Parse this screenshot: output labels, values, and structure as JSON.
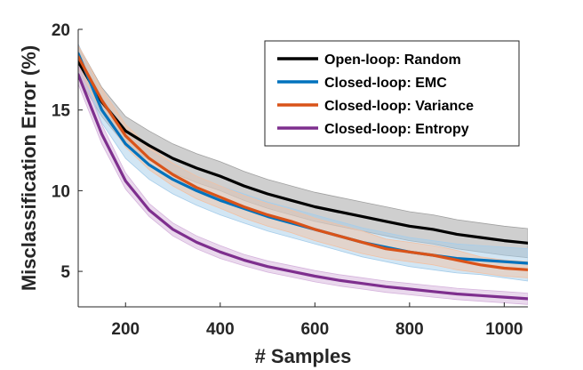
{
  "chart_data": {
    "type": "line",
    "xlabel": "# Samples",
    "ylabel": "Misclassification Error (%)",
    "xlim": [
      100,
      1050
    ],
    "ylim": [
      2.8,
      20
    ],
    "xticks": [
      200,
      400,
      600,
      800,
      1000
    ],
    "yticks": [
      5,
      10,
      15,
      20
    ],
    "legend_position": "top-right",
    "x": [
      100,
      150,
      200,
      250,
      300,
      350,
      400,
      450,
      500,
      550,
      600,
      650,
      700,
      750,
      800,
      850,
      900,
      950,
      1000,
      1050
    ],
    "series": [
      {
        "name": "Open-loop: Random",
        "color": "#000000",
        "band_color": "#a0a0a0",
        "values": [
          18.0,
          15.5,
          13.7,
          12.8,
          12.0,
          11.4,
          10.9,
          10.3,
          9.8,
          9.4,
          9.0,
          8.7,
          8.4,
          8.1,
          7.8,
          7.6,
          7.3,
          7.1,
          6.9,
          6.75
        ],
        "lower": [
          17.0,
          14.6,
          12.8,
          11.9,
          11.1,
          10.5,
          10.0,
          9.4,
          8.9,
          8.5,
          8.1,
          7.8,
          7.5,
          7.2,
          6.9,
          6.7,
          6.4,
          6.2,
          6.0,
          5.85
        ],
        "upper": [
          19.0,
          16.4,
          14.6,
          13.7,
          12.9,
          12.3,
          11.8,
          11.2,
          10.7,
          10.3,
          9.9,
          9.6,
          9.3,
          9.0,
          8.7,
          8.5,
          8.2,
          8.0,
          7.8,
          7.65
        ]
      },
      {
        "name": "Closed-loop: EMC",
        "color": "#0072bd",
        "band_color": "#a6cdea",
        "values": [
          18.5,
          15.0,
          12.9,
          11.6,
          10.7,
          10.0,
          9.4,
          8.9,
          8.4,
          8.0,
          7.6,
          7.2,
          6.8,
          6.5,
          6.2,
          6.0,
          5.8,
          5.7,
          5.6,
          5.5
        ],
        "lower": [
          17.9,
          14.2,
          12.0,
          10.7,
          9.8,
          9.1,
          8.5,
          8.0,
          7.5,
          7.1,
          6.7,
          6.3,
          5.9,
          5.6,
          5.3,
          5.1,
          4.9,
          4.8,
          4.6,
          4.4
        ],
        "upper": [
          19.1,
          15.8,
          13.8,
          12.5,
          11.6,
          10.9,
          10.3,
          9.8,
          9.3,
          8.9,
          8.5,
          8.1,
          7.7,
          7.4,
          7.1,
          6.9,
          6.7,
          6.6,
          6.5,
          6.4
        ]
      },
      {
        "name": "Closed-loop: Variance",
        "color": "#d95319",
        "band_color": "#f2c1a4",
        "values": [
          18.3,
          15.6,
          13.4,
          12.0,
          11.0,
          10.2,
          9.6,
          9.0,
          8.5,
          8.1,
          7.6,
          7.2,
          6.8,
          6.4,
          6.2,
          6.0,
          5.7,
          5.4,
          5.2,
          5.1
        ],
        "lower": [
          17.6,
          14.9,
          12.7,
          11.3,
          10.3,
          9.5,
          8.9,
          8.3,
          7.8,
          7.4,
          6.9,
          6.5,
          6.1,
          5.8,
          5.6,
          5.4,
          5.1,
          4.9,
          4.7,
          4.6
        ],
        "upper": [
          19.0,
          16.3,
          14.1,
          12.7,
          11.7,
          10.9,
          10.3,
          9.7,
          9.2,
          8.8,
          8.3,
          7.9,
          7.5,
          7.0,
          6.8,
          6.6,
          6.3,
          5.9,
          5.7,
          5.6
        ]
      },
      {
        "name": "Closed-loop: Entropy",
        "color": "#7e2f8e",
        "band_color": "#d5b3dc",
        "values": [
          17.2,
          13.5,
          10.6,
          8.8,
          7.6,
          6.8,
          6.2,
          5.7,
          5.3,
          5.0,
          4.7,
          4.45,
          4.25,
          4.05,
          3.9,
          3.75,
          3.6,
          3.5,
          3.4,
          3.3
        ],
        "lower": [
          16.6,
          12.9,
          10.1,
          8.4,
          7.2,
          6.4,
          5.8,
          5.35,
          4.95,
          4.65,
          4.35,
          4.1,
          3.9,
          3.7,
          3.55,
          3.4,
          3.25,
          3.15,
          3.05,
          2.95
        ],
        "upper": [
          17.8,
          14.1,
          11.1,
          9.2,
          8.0,
          7.2,
          6.6,
          6.05,
          5.65,
          5.35,
          5.05,
          4.8,
          4.6,
          4.4,
          4.25,
          4.1,
          3.95,
          3.85,
          3.75,
          3.65
        ]
      }
    ]
  }
}
